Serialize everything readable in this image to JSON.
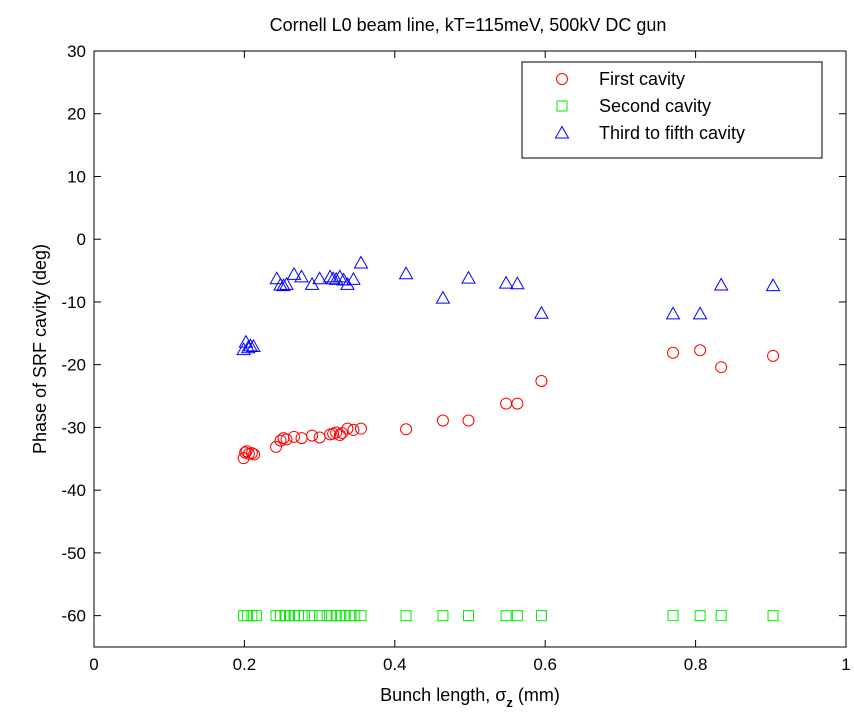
{
  "chart_data": {
    "type": "scatter",
    "title": "Cornell L0 beam line, kT=115meV, 500kV DC gun",
    "xlabel": {
      "prefix": "Bunch length, σ",
      "subscript": "z",
      "suffix": " (mm)"
    },
    "ylabel": "Phase of SRF cavity (deg)",
    "xlim": [
      0,
      1
    ],
    "ylim": [
      -65,
      30
    ],
    "xticks": [
      0,
      0.2,
      0.4,
      0.6,
      0.8,
      1
    ],
    "xtick_labels": [
      "0",
      "0.2",
      "0.4",
      "0.6",
      "0.8",
      "1"
    ],
    "yticks": [
      -60,
      -50,
      -40,
      -30,
      -20,
      -10,
      0,
      10,
      20,
      30
    ],
    "ytick_labels": [
      "-60",
      "-50",
      "-40",
      "-30",
      "-20",
      "-10",
      "0",
      "10",
      "20",
      "30"
    ],
    "grid": false,
    "legend_position": "top-right",
    "series": [
      {
        "name": "First cavity",
        "marker": "circle",
        "color": "#ff0000",
        "x": [
          0.199,
          0.201,
          0.203,
          0.206,
          0.21,
          0.213,
          0.242,
          0.248,
          0.252,
          0.256,
          0.266,
          0.276,
          0.29,
          0.3,
          0.314,
          0.318,
          0.322,
          0.327,
          0.33,
          0.337,
          0.345,
          0.355,
          0.415,
          0.464,
          0.498,
          0.548,
          0.563,
          0.595,
          0.77,
          0.806,
          0.834,
          0.903
        ],
        "y": [
          -34.9,
          -34.0,
          -33.8,
          -34.2,
          -34.1,
          -34.3,
          -33.1,
          -32.1,
          -31.7,
          -31.9,
          -31.5,
          -31.7,
          -31.3,
          -31.6,
          -31.1,
          -31.0,
          -30.8,
          -31.2,
          -30.9,
          -30.2,
          -30.4,
          -30.2,
          -30.3,
          -28.9,
          -28.9,
          -26.2,
          -26.2,
          -22.6,
          -18.1,
          -17.7,
          -20.4,
          -18.6
        ]
      },
      {
        "name": "Second cavity",
        "marker": "square",
        "color": "#00ee00",
        "x": [
          0.199,
          0.204,
          0.21,
          0.216,
          0.242,
          0.248,
          0.254,
          0.26,
          0.266,
          0.272,
          0.28,
          0.29,
          0.3,
          0.31,
          0.316,
          0.322,
          0.328,
          0.334,
          0.34,
          0.346,
          0.355,
          0.415,
          0.464,
          0.498,
          0.548,
          0.563,
          0.595,
          0.77,
          0.806,
          0.834,
          0.903
        ],
        "y": [
          -60,
          -60,
          -60,
          -60,
          -60,
          -60,
          -60,
          -60,
          -60,
          -60,
          -60,
          -60,
          -60,
          -60,
          -60,
          -60,
          -60,
          -60,
          -60,
          -60,
          -60,
          -60,
          -60,
          -60,
          -60,
          -60,
          -60,
          -60,
          -60,
          -60,
          -60
        ]
      },
      {
        "name": "Third to fifth cavity",
        "marker": "triangle",
        "color": "#0000ff",
        "x": [
          0.199,
          0.202,
          0.205,
          0.208,
          0.212,
          0.243,
          0.248,
          0.252,
          0.256,
          0.266,
          0.276,
          0.29,
          0.3,
          0.314,
          0.318,
          0.322,
          0.327,
          0.332,
          0.337,
          0.345,
          0.355,
          0.415,
          0.464,
          0.498,
          0.548,
          0.563,
          0.595,
          0.77,
          0.806,
          0.834,
          0.903
        ],
        "y": [
          -17.6,
          -16.4,
          -17.3,
          -17.0,
          -17.1,
          -6.3,
          -7.3,
          -7.4,
          -7.2,
          -5.6,
          -6.0,
          -7.2,
          -6.3,
          -6.0,
          -6.3,
          -6.4,
          -6.0,
          -6.5,
          -7.2,
          -6.4,
          -3.8,
          -5.5,
          -9.4,
          -6.2,
          -7.0,
          -7.1,
          -11.8,
          -11.9,
          -11.9,
          -7.3,
          -7.4
        ]
      }
    ]
  }
}
